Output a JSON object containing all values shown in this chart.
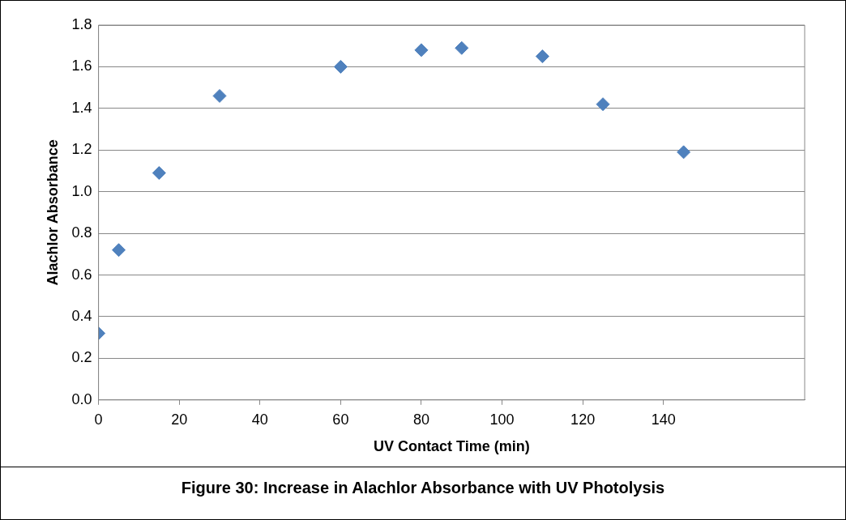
{
  "chart_data": {
    "type": "scatter",
    "xlabel": "UV Contact Time (min)",
    "ylabel": "Alachlor Absorbance",
    "annotations": [
      "Figure 30: Increase in Alachlor Absorbance with UV Photolysis"
    ],
    "x": [
      0,
      5,
      15,
      30,
      60,
      80,
      90,
      110,
      125,
      145
    ],
    "values": [
      0.32,
      0.72,
      1.09,
      1.46,
      1.6,
      1.68,
      1.69,
      1.65,
      1.42,
      1.19
    ],
    "color": "#4f81bd",
    "marker": "diamond",
    "xlim": [
      0,
      175
    ],
    "xticks": [
      0,
      20,
      40,
      60,
      80,
      100,
      120,
      140
    ],
    "ylim": [
      0,
      1.8
    ],
    "yticks": [
      {
        "value": 0,
        "label": "0.0"
      },
      {
        "value": 0.2,
        "label": "0.2"
      },
      {
        "value": 0.4,
        "label": "0.4"
      },
      {
        "value": 0.6,
        "label": "0.6"
      },
      {
        "value": 0.8,
        "label": "0.8"
      },
      {
        "value": 1,
        "label": "1.0"
      },
      {
        "value": 1.2,
        "label": "1.2"
      },
      {
        "value": 1.4,
        "label": "1.4"
      },
      {
        "value": 1.6,
        "label": "1.6"
      },
      {
        "value": 1.8,
        "label": "1.8"
      }
    ],
    "grid": "y",
    "legend": false
  }
}
